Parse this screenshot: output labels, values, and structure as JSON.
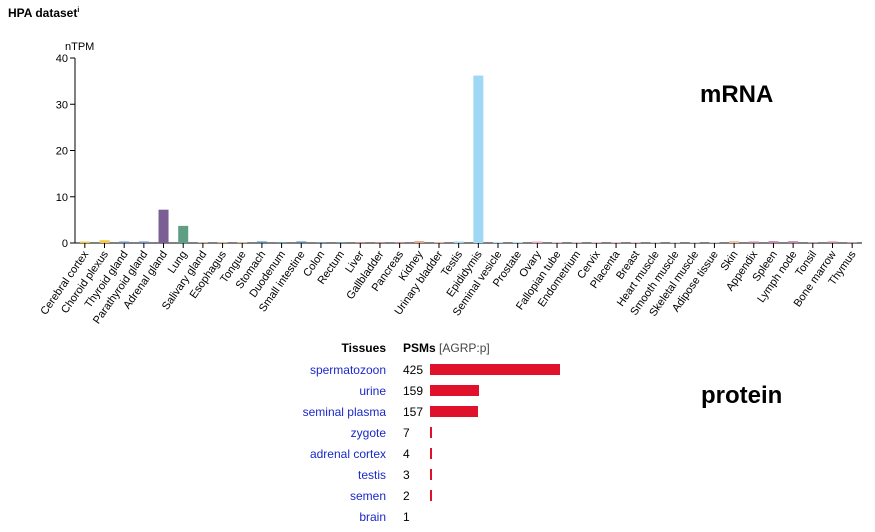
{
  "dataset": {
    "title": "HPA dataset",
    "info_mark": "i"
  },
  "mrna": {
    "label": "mRNA"
  },
  "protein": {
    "label": "protein",
    "header_tissues": "Tissues",
    "header_psms": "PSMs",
    "header_gene": "[AGRP:p]",
    "bar_color": "#e0112b",
    "max_value": 425,
    "rows": [
      {
        "tissue": "spermatozoon",
        "value": 425
      },
      {
        "tissue": "urine",
        "value": 159
      },
      {
        "tissue": "seminal plasma",
        "value": 157
      },
      {
        "tissue": "zygote",
        "value": 7
      },
      {
        "tissue": "adrenal cortex",
        "value": 4
      },
      {
        "tissue": "testis",
        "value": 3
      },
      {
        "tissue": "semen",
        "value": 2
      },
      {
        "tissue": "brain",
        "value": 1
      }
    ]
  },
  "chart_data": {
    "type": "bar",
    "title": "",
    "xlabel": "",
    "ylabel": "nTPM",
    "ylim": [
      0,
      40
    ],
    "yticks": [
      0,
      10,
      20,
      30,
      40
    ],
    "grid": false,
    "categories": [
      "Cerebral cortex",
      "Choroid plexus",
      "Thyroid gland",
      "Parathyroid gland",
      "Adrenal gland",
      "Lung",
      "Salivary gland",
      "Esophagus",
      "Tongue",
      "Stomach",
      "Duodenum",
      "Small intestine",
      "Colon",
      "Rectum",
      "Liver",
      "Gallbladder",
      "Pancreas",
      "Kidney",
      "Urinary bladder",
      "Testis",
      "Epididymis",
      "Seminal vesicle",
      "Prostate",
      "Ovary",
      "Fallopian tube",
      "Endometrium",
      "Cervix",
      "Placenta",
      "Breast",
      "Heart muscle",
      "Smooth muscle",
      "Skeletal muscle",
      "Adipose tissue",
      "Skin",
      "Appendix",
      "Spleen",
      "Lymph node",
      "Tonsil",
      "Bone marrow",
      "Thymus"
    ],
    "values": [
      0.2,
      0.6,
      0.1,
      0.1,
      7.2,
      3.7,
      0,
      0,
      0,
      0.2,
      0,
      0.2,
      0,
      0,
      0,
      0,
      0,
      0.4,
      0,
      0.3,
      36.2,
      0,
      0,
      0.1,
      0,
      0,
      0,
      0,
      0,
      0,
      0,
      0,
      0,
      0.4,
      0.2,
      0.4,
      0.4,
      0,
      0.2,
      0
    ],
    "colors": [
      "#f2c744",
      "#f2c744",
      "#6f89c4",
      "#6f89c4",
      "#7a5e94",
      "#5f9e84",
      "#c9a87a",
      "#c9a87a",
      "#c9a87a",
      "#4b87a8",
      "#4b87a8",
      "#4b87a8",
      "#4b87a8",
      "#4b87a8",
      "#c96d6d",
      "#c96d6d",
      "#c96d6d",
      "#e8a07c",
      "#e8a07c",
      "#9fd8f5",
      "#9fd8f5",
      "#9fd8f5",
      "#9fd8f5",
      "#f2a6c1",
      "#f2a6c1",
      "#f2a6c1",
      "#f2a6c1",
      "#f2a6c1",
      "#f2a6c1",
      "#c9c9c9",
      "#c9c9c9",
      "#c9c9c9",
      "#c9c9c9",
      "#f5b89a",
      "#c084a8",
      "#c084a8",
      "#c084a8",
      "#c084a8",
      "#c084a8",
      "#c084a8"
    ]
  }
}
